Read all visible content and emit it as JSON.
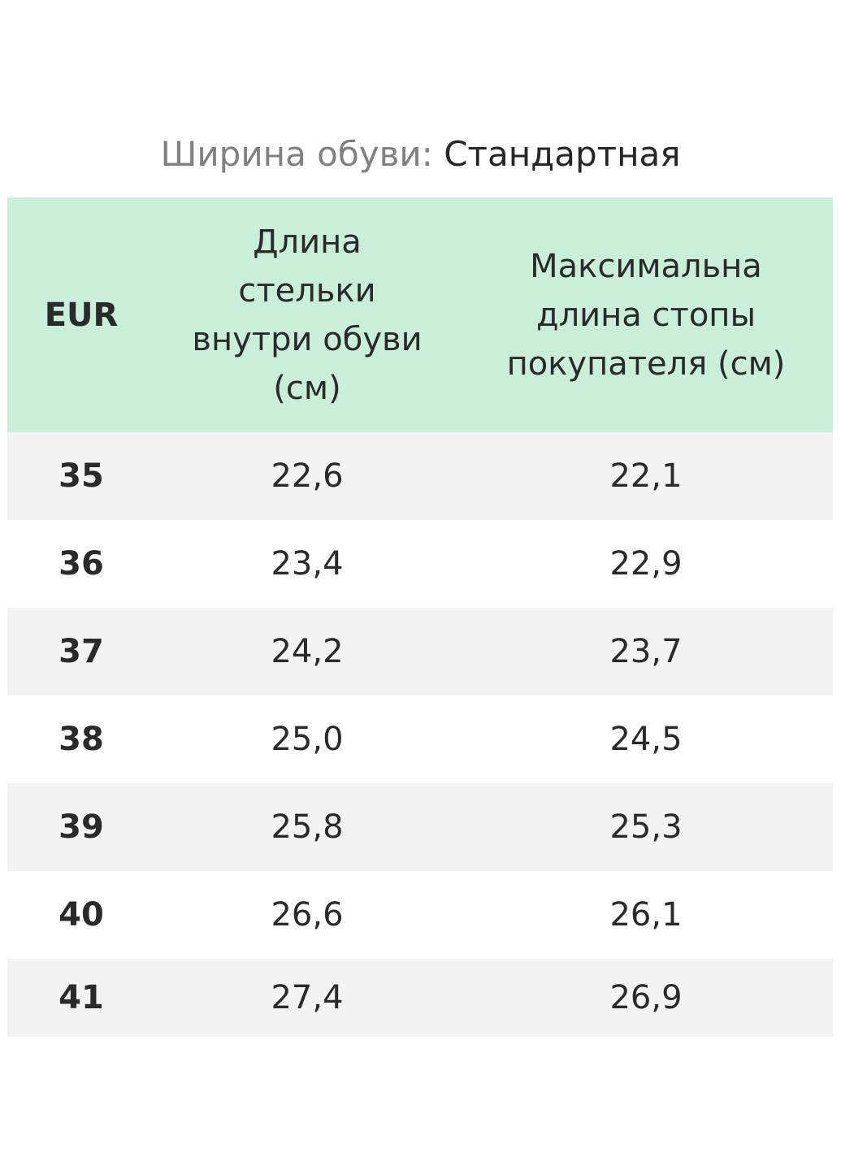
{
  "title": {
    "label": "Ширина обуви:",
    "value": "Стандартная"
  },
  "table": {
    "headers": [
      "EUR",
      "Длина\nстельки\nвнутри обуви\n(см)",
      "Максимальна\nдлина стопы\nпокупателя (см)"
    ],
    "rows": [
      [
        "35",
        "22,6",
        "22,1"
      ],
      [
        "36",
        "23,4",
        "22,9"
      ],
      [
        "37",
        "24,2",
        "23,7"
      ],
      [
        "38",
        "25,0",
        "24,5"
      ],
      [
        "39",
        "25,8",
        "25,3"
      ],
      [
        "40",
        "26,6",
        "26,1"
      ],
      [
        "41",
        "27,4",
        "26,9"
      ]
    ]
  }
}
